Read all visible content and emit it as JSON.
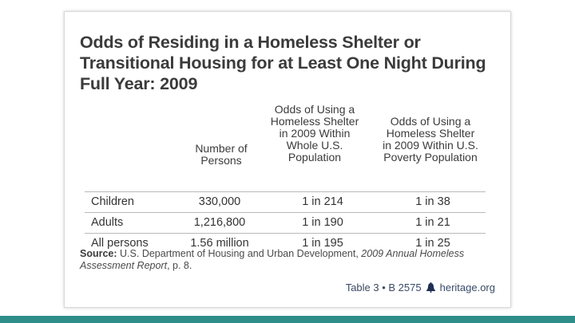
{
  "title_lines": [
    "Odds of Residing in a Homeless Shelter or",
    "Transitional Housing for at Least One Night During",
    "Full Year: 2009"
  ],
  "headers": {
    "persons": [
      "Number of",
      "Persons"
    ],
    "whole": [
      "Odds of Using a",
      "Homeless Shelter",
      "in 2009 Within",
      "Whole U.S.",
      "Population"
    ],
    "poverty": [
      "Odds of Using a",
      "Homeless Shelter",
      "in 2009 Within U.S.",
      "Poverty Population"
    ]
  },
  "rows": [
    {
      "label": "Children",
      "persons": "330,000",
      "whole": "1 in 214",
      "poverty": "1 in 38"
    },
    {
      "label": "Adults",
      "persons": "1,216,800",
      "whole": "1 in 190",
      "poverty": "1 in 21"
    },
    {
      "label": "All persons",
      "persons": "1.56 million",
      "whole": "1 in 195",
      "poverty": "1 in 25"
    }
  ],
  "source": {
    "label": "Source:",
    "text": "U.S. Department of Housing and Urban Development,",
    "report": "2009 Annual Homeless Assessment Report",
    "suffix": ", p. 8."
  },
  "footer": {
    "table_ref": "Table 3 • B 2575",
    "site": "heritage.org",
    "icon": "liberty-bell-icon"
  },
  "colors": {
    "bottom_bar": "#2f8d8a",
    "title": "#3b3b3b",
    "footer_text": "#3a4a66"
  }
}
